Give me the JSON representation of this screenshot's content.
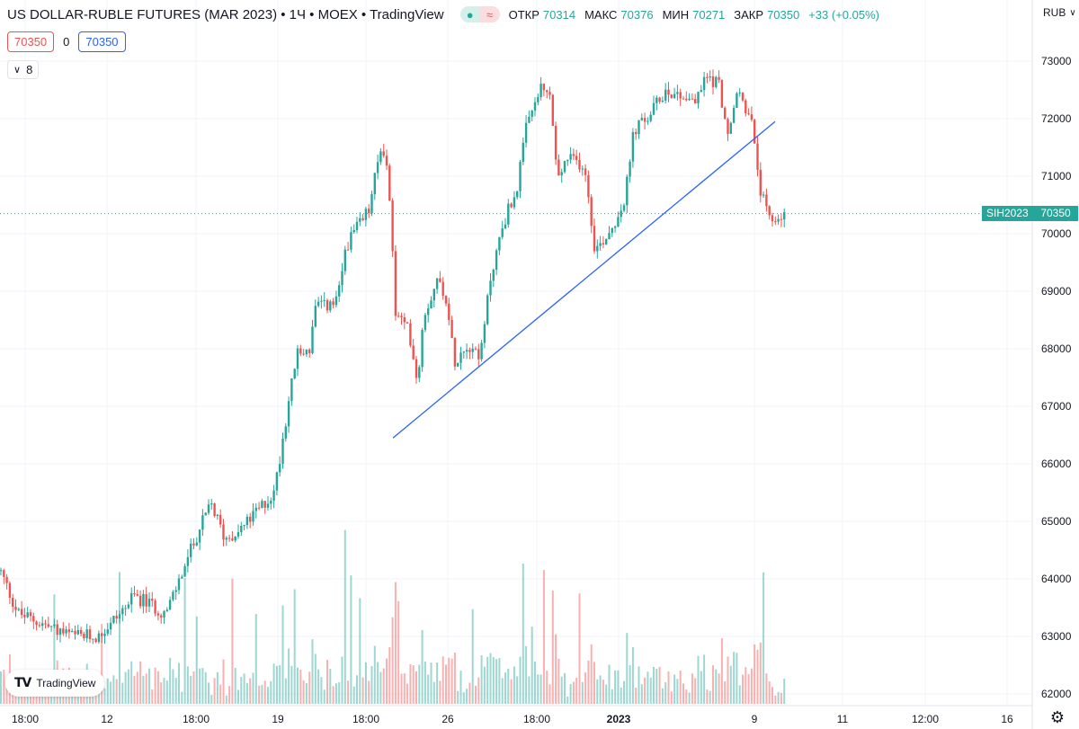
{
  "header": {
    "title": "US DOLLAR-RUBLE FUTURES (MAR 2023) • 1Ч • MOEX • TradingView",
    "status_icon_left": "dot-icon",
    "status_icon_right": "wave-icon",
    "ohlc": {
      "open_label": "ОТКР",
      "open": "70314",
      "high_label": "МАКС",
      "high": "70376",
      "low_label": "МИН",
      "low": "70271",
      "close_label": "ЗАКР",
      "close": "70350",
      "change": "+33 (+0.05%)"
    }
  },
  "quote": {
    "bid": "70350",
    "spread": "0",
    "ask": "70350"
  },
  "indicator_toggle": {
    "count": "8"
  },
  "axis": {
    "currency": "RUB"
  },
  "last_price_tag": {
    "symbol": "SIH2023",
    "price": "70350"
  },
  "branding": {
    "logo_text": "TradingView"
  },
  "colors": {
    "up": "#26a69a",
    "down": "#ef5350",
    "trendline": "#2962ff",
    "grid": "#f0f3fa"
  },
  "chart_data": {
    "type": "candlestick",
    "interval": "1 hour",
    "y_axis": {
      "ticks": [
        62000,
        63000,
        64000,
        65000,
        66000,
        67000,
        68000,
        69000,
        70000,
        71000,
        72000,
        73000
      ],
      "range": [
        61850,
        73250
      ],
      "position": "right"
    },
    "x_axis": {
      "tick_labels": [
        "18:00",
        "12",
        "18:00",
        "19",
        "18:00",
        "26",
        "18:00",
        "2023",
        "9",
        "11",
        "12:00",
        "16"
      ]
    },
    "price_path": {
      "note_points": [
        [
          0,
          64150
        ],
        [
          20,
          63400
        ],
        [
          50,
          63200
        ],
        [
          80,
          63000
        ],
        [
          110,
          63000
        ],
        [
          150,
          63700
        ],
        [
          185,
          63400
        ],
        [
          200,
          64000
        ],
        [
          220,
          64800
        ],
        [
          235,
          65300
        ],
        [
          250,
          64700
        ],
        [
          270,
          64900
        ],
        [
          305,
          65500
        ],
        [
          320,
          67000
        ],
        [
          330,
          67900
        ],
        [
          345,
          68000
        ],
        [
          350,
          68700
        ],
        [
          375,
          68800
        ],
        [
          385,
          69800
        ],
        [
          410,
          70400
        ],
        [
          425,
          71600
        ],
        [
          432,
          71000
        ],
        [
          440,
          68600
        ],
        [
          455,
          68300
        ],
        [
          465,
          67400
        ],
        [
          470,
          68500
        ],
        [
          485,
          69200
        ],
        [
          495,
          69000
        ],
        [
          505,
          67800
        ],
        [
          520,
          68100
        ],
        [
          535,
          67900
        ],
        [
          545,
          69200
        ],
        [
          560,
          70200
        ],
        [
          575,
          70800
        ],
        [
          585,
          71800
        ],
        [
          600,
          72500
        ],
        [
          612,
          72400
        ],
        [
          620,
          70900
        ],
        [
          630,
          71300
        ],
        [
          650,
          71200
        ],
        [
          662,
          69700
        ],
        [
          680,
          70100
        ],
        [
          695,
          70600
        ],
        [
          705,
          71800
        ],
        [
          720,
          72000
        ],
        [
          740,
          72500
        ],
        [
          760,
          72400
        ],
        [
          775,
          72300
        ],
        [
          785,
          72750
        ],
        [
          800,
          72600
        ],
        [
          810,
          71600
        ],
        [
          820,
          72500
        ],
        [
          835,
          72000
        ],
        [
          845,
          70800
        ],
        [
          855,
          70200
        ],
        [
          875,
          70350
        ]
      ]
    },
    "volume_bars_visible": true,
    "trendline": {
      "start": {
        "x_index": 437,
        "price": 66450
      },
      "end": {
        "x_index": 862,
        "price": 71950
      }
    },
    "last_price": 70350
  }
}
